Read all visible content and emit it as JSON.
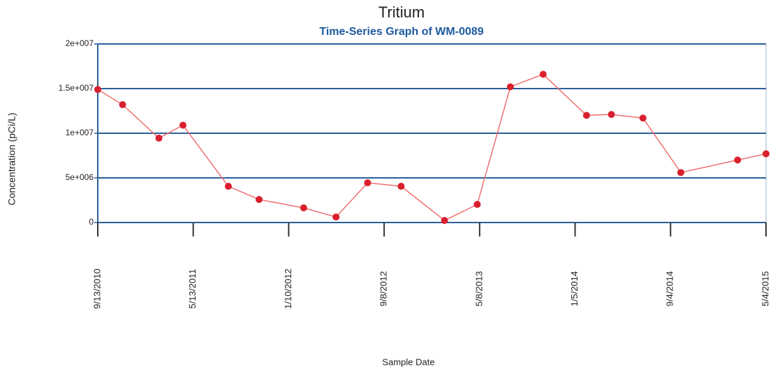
{
  "chart_data": {
    "type": "line",
    "title": "Tritium",
    "subtitle": "Time-Series Graph of WM-0089",
    "xlabel": "Sample Date",
    "ylabel": "Concentration (pCi/L)",
    "x": [
      "9/13/2010",
      "11/15/2010",
      "2/15/2011",
      "4/17/2011",
      "8/10/2011",
      "10/27/2011",
      "2/17/2012",
      "5/9/2012",
      "7/28/2012",
      "10/21/2012",
      "2/8/2013",
      "5/2/2013",
      "7/25/2013",
      "10/16/2013",
      "2/3/2014",
      "4/7/2014",
      "6/26/2014",
      "9/30/2014",
      "2/21/2015",
      "5/4/2015"
    ],
    "series": [
      {
        "name": "WM-0089",
        "color": "#d9202e",
        "line_color": "#f07070",
        "values": [
          14900000,
          13200000,
          9450000,
          10900000,
          4060000,
          2580000,
          1640000,
          620000,
          4450000,
          4060000,
          230000,
          2030000,
          15200000,
          16600000,
          12000000,
          12100000,
          11700000,
          5600000,
          7000000,
          7700000
        ]
      }
    ],
    "xlim": [
      "9/13/2010",
      "5/4/2015"
    ],
    "xticks": [
      "9/13/2010",
      "5/13/2011",
      "1/10/2012",
      "9/8/2012",
      "5/8/2013",
      "1/5/2014",
      "9/4/2014",
      "5/4/2015"
    ],
    "ylim": [
      0,
      20000000
    ],
    "yticks": [
      0,
      {
        "value": 5000000,
        "label": "5e+006"
      },
      {
        "value": 10000000,
        "label": "1e+007"
      },
      {
        "value": 15000000,
        "label": "1.5e+007"
      },
      {
        "value": 20000000,
        "label": "2e+007"
      }
    ],
    "grid": true,
    "grid_color": "#2a5f99"
  }
}
